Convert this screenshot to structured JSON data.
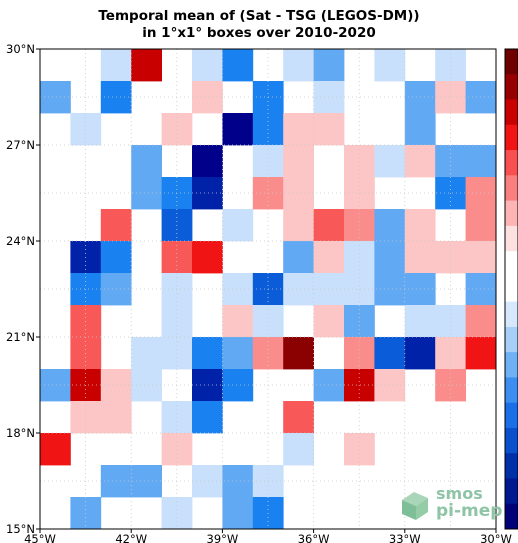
{
  "title": {
    "line1": "Temporal mean of (Sat - TSG (LEGOS-DM))",
    "line2": "in 1°x1° boxes over 2010-2020"
  },
  "watermark": {
    "line1": "smos",
    "line2": "pi-mep"
  },
  "colors": {
    "vdb": "#00008b",
    "db": "#0022a8",
    "mb": "#0a5cd8",
    "b": "#1a82f0",
    "lb": "#62a9f4",
    "pb": "#c8e0fb",
    "w": "#ffffff",
    "pr": "#fcc6c6",
    "lr": "#fa8c8c",
    "mr": "#f85858",
    "r": "#f01414",
    "dr": "#c80000",
    "vdr": "#8b0000",
    "colorbar": [
      "#6e0000",
      "#960000",
      "#c80000",
      "#f01414",
      "#f85050",
      "#fa8080",
      "#fcb4b4",
      "#fde0e0",
      "#ffffff",
      "#ffffff",
      "#d8e8fc",
      "#a8cff8",
      "#70b0f4",
      "#3c8ef0",
      "#1a6ee6",
      "#0a50cc",
      "#0030a8",
      "#001890",
      "#000078"
    ]
  },
  "chart_data": {
    "type": "heatmap",
    "title": "Temporal mean of (Sat - TSG (LEGOS-DM)) in 1°x1° boxes over 2010-2020",
    "x_range": [
      -45,
      -30
    ],
    "y_range": [
      15,
      30
    ],
    "x_ticks": [
      "45°W",
      "42°W",
      "39°W",
      "36°W",
      "33°W",
      "30°W"
    ],
    "y_ticks": [
      "30°N",
      "27°N",
      "24°N",
      "21°N",
      "18°N",
      "15°N"
    ],
    "cell_size_deg": 1,
    "legend": "colorbar (right)",
    "grid": true,
    "grid_rows_north_to_south": [
      [
        "w",
        "w",
        "pb",
        "dr",
        "w",
        "pb",
        "b",
        "w",
        "pb",
        "lb",
        "w",
        "pb",
        "w",
        "pb",
        "w"
      ],
      [
        "lb",
        "w",
        "b",
        "w",
        "w",
        "pr",
        "w",
        "b",
        "w",
        "pb",
        "w",
        "w",
        "lb",
        "pr",
        "lb"
      ],
      [
        "w",
        "pb",
        "w",
        "w",
        "pr",
        "w",
        "vdb",
        "b",
        "pr",
        "pr",
        "w",
        "w",
        "lb",
        "w",
        "w"
      ],
      [
        "w",
        "w",
        "w",
        "lb",
        "w",
        "vdb",
        "w",
        "pb",
        "pr",
        "w",
        "pr",
        "pb",
        "pr",
        "lb",
        "lb"
      ],
      [
        "w",
        "w",
        "w",
        "lb",
        "b",
        "db",
        "w",
        "lr",
        "pr",
        "w",
        "pr",
        "w",
        "w",
        "b",
        "lr"
      ],
      [
        "w",
        "w",
        "mr",
        "w",
        "mb",
        "w",
        "pb",
        "w",
        "pr",
        "mr",
        "lr",
        "lb",
        "pr",
        "w",
        "lr"
      ],
      [
        "w",
        "db",
        "b",
        "w",
        "mr",
        "r",
        "w",
        "w",
        "lb",
        "pr",
        "pb",
        "lb",
        "pr",
        "pr",
        "pr"
      ],
      [
        "w",
        "b",
        "lb",
        "w",
        "pb",
        "w",
        "pb",
        "mb",
        "pb",
        "pb",
        "pb",
        "lb",
        "lb",
        "w",
        "lb"
      ],
      [
        "w",
        "mr",
        "w",
        "w",
        "pb",
        "w",
        "pr",
        "pb",
        "w",
        "pr",
        "lb",
        "w",
        "pb",
        "pb",
        "lr"
      ],
      [
        "w",
        "mr",
        "w",
        "pb",
        "pb",
        "b",
        "lb",
        "lr",
        "vdr",
        "w",
        "lr",
        "mb",
        "db",
        "pr",
        "r"
      ],
      [
        "lb",
        "dr",
        "pr",
        "pb",
        "w",
        "db",
        "b",
        "w",
        "w",
        "lb",
        "dr",
        "pr",
        "w",
        "lr",
        "w"
      ],
      [
        "w",
        "pr",
        "pr",
        "w",
        "pb",
        "b",
        "w",
        "w",
        "mr",
        "w",
        "w",
        "w",
        "w",
        "w",
        "w"
      ],
      [
        "r",
        "w",
        "w",
        "w",
        "pr",
        "w",
        "w",
        "w",
        "pb",
        "w",
        "pr",
        "w",
        "w",
        "w",
        "w"
      ],
      [
        "w",
        "w",
        "lb",
        "lb",
        "w",
        "pb",
        "lb",
        "pb",
        "w",
        "w",
        "w",
        "w",
        "w",
        "w",
        "w"
      ],
      [
        "w",
        "lb",
        "w",
        "w",
        "pb",
        "w",
        "lb",
        "b",
        "w",
        "w",
        "w",
        "w",
        "w",
        "w",
        "w"
      ]
    ]
  }
}
